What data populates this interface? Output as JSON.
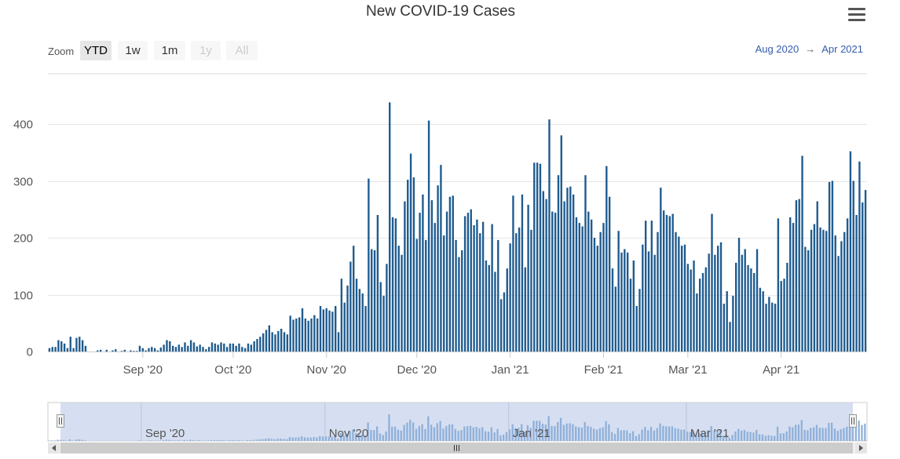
{
  "header": {
    "title": "New COVID-19 Cases"
  },
  "icons": {
    "menu": "hamburger-menu-icon",
    "scroll_left": "arrow-left-icon",
    "scroll_right": "arrow-right-icon",
    "scroll_grip": "grip-icon"
  },
  "range_selector": {
    "zoom_label": "Zoom",
    "buttons": [
      {
        "label": "YTD",
        "state": "selected"
      },
      {
        "label": "1w",
        "state": "normal"
      },
      {
        "label": "1m",
        "state": "normal"
      },
      {
        "label": "1y",
        "state": "disabled"
      },
      {
        "label": "All",
        "state": "disabled"
      }
    ],
    "from": "Aug 2020",
    "arrow": "→",
    "to": "Apr 2021"
  },
  "colors": {
    "bar": "#1f5b8f",
    "navigator_fill": "#c8d4ec",
    "navigator_bars": "#8fb0d9",
    "grid": "#e6e6e6"
  },
  "chart_data": {
    "type": "bar",
    "title": "New COVID-19 Cases",
    "x_start": "2020-08-01",
    "y_ticks": [
      0,
      100,
      200,
      300,
      400
    ],
    "ylim": [
      0,
      440
    ],
    "x_ticks": [
      {
        "label": "Sep '20",
        "date": "2020-09-01"
      },
      {
        "label": "Oct '20",
        "date": "2020-10-01"
      },
      {
        "label": "Nov '20",
        "date": "2020-11-01"
      },
      {
        "label": "Dec '20",
        "date": "2020-12-01"
      },
      {
        "label": "Jan '21",
        "date": "2021-01-01"
      },
      {
        "label": "Feb '21",
        "date": "2021-02-01"
      },
      {
        "label": "Mar '21",
        "date": "2021-03-01"
      },
      {
        "label": "Apr '21",
        "date": "2021-04-01"
      }
    ],
    "navigator_ticks": [
      {
        "label": "Sep '20",
        "date": "2020-09-01"
      },
      {
        "label": "Nov '20",
        "date": "2020-11-01"
      },
      {
        "label": "Jan '21",
        "date": "2021-01-01"
      },
      {
        "label": "Mar '21",
        "date": "2021-03-01"
      }
    ],
    "values": [
      6,
      8,
      8,
      20,
      18,
      14,
      6,
      26,
      6,
      24,
      26,
      20,
      10,
      0,
      0,
      0,
      2,
      3,
      0,
      3,
      0,
      2,
      4,
      0,
      1,
      3,
      0,
      2,
      1,
      1,
      10,
      6,
      2,
      6,
      8,
      6,
      2,
      7,
      12,
      20,
      18,
      10,
      8,
      12,
      8,
      16,
      10,
      20,
      16,
      9,
      12,
      8,
      4,
      8,
      16,
      14,
      12,
      16,
      14,
      8,
      14,
      14,
      10,
      14,
      8,
      6,
      14,
      12,
      18,
      22,
      26,
      32,
      38,
      46,
      34,
      30,
      36,
      40,
      34,
      30,
      63,
      56,
      58,
      60,
      76,
      58,
      54,
      58,
      64,
      58,
      80,
      74,
      76,
      72,
      70,
      80,
      34,
      128,
      86,
      116,
      158,
      186,
      128,
      110,
      102,
      80,
      304,
      180,
      178,
      240,
      122,
      98,
      154,
      438,
      236,
      234,
      186,
      170,
      264,
      302,
      348,
      306,
      198,
      244,
      276,
      196,
      406,
      266,
      226,
      292,
      328,
      204,
      246,
      272,
      274,
      196,
      166,
      178,
      238,
      244,
      250,
      222,
      232,
      208,
      228,
      160,
      152,
      224,
      140,
      196,
      92,
      104,
      146,
      190,
      274,
      208,
      218,
      276,
      148,
      258,
      214,
      332,
      332,
      330,
      282,
      268,
      408,
      246,
      244,
      310,
      380,
      264,
      288,
      290,
      276,
      236,
      226,
      220,
      310,
      246,
      232,
      200,
      186,
      210,
      226,
      326,
      272,
      146,
      114,
      212,
      174,
      180,
      174,
      128,
      160,
      80,
      110,
      188,
      230,
      176,
      230,
      170,
      210,
      288,
      248,
      240,
      238,
      242,
      210,
      202,
      186,
      188,
      154,
      144,
      160,
      102,
      128,
      138,
      148,
      172,
      242,
      170,
      186,
      192,
      84,
      106,
      52,
      98,
      156,
      200,
      170,
      180,
      152,
      146,
      138,
      180,
      112,
      106,
      84,
      96,
      86,
      84,
      234,
      124,
      128,
      156,
      236,
      226,
      266,
      268,
      344,
      184,
      178,
      214,
      224,
      264,
      218,
      214,
      212,
      298,
      300,
      204,
      168,
      194,
      210,
      234,
      352,
      300,
      240,
      334,
      262,
      284
    ]
  }
}
